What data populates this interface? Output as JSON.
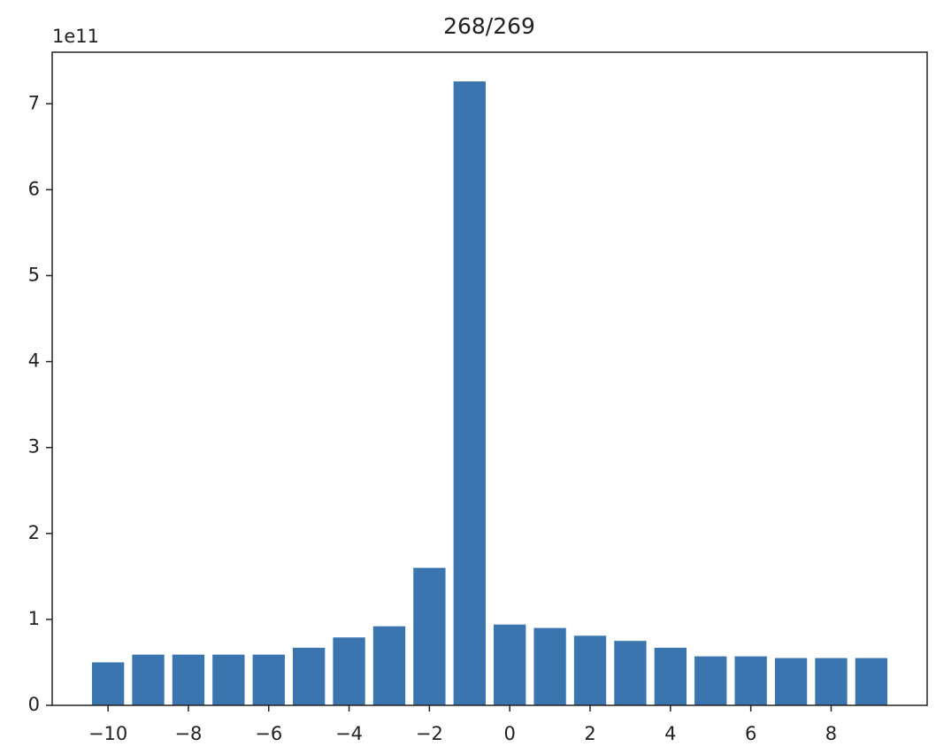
{
  "chart_data": {
    "type": "bar",
    "title": "268/269",
    "offset_label": "1e11",
    "x": [
      -10,
      -9,
      -8,
      -7,
      -6,
      -5,
      -4,
      -3,
      -2,
      -1,
      0,
      1,
      2,
      3,
      4,
      5,
      6,
      7,
      8,
      9
    ],
    "values": [
      0.5,
      0.59,
      0.59,
      0.59,
      0.59,
      0.67,
      0.79,
      0.92,
      1.6,
      7.26,
      0.94,
      0.9,
      0.81,
      0.75,
      0.67,
      0.57,
      0.57,
      0.55,
      0.55,
      0.55
    ],
    "bar_width": 0.8,
    "color": "#3a75af",
    "xlim": [
      -11.39,
      10.39
    ],
    "xticks": [
      {
        "value": -10,
        "label": "−10"
      },
      {
        "value": -8,
        "label": "−8"
      },
      {
        "value": -6,
        "label": "−6"
      },
      {
        "value": -4,
        "label": "−4"
      },
      {
        "value": -2,
        "label": "−2"
      },
      0,
      2,
      4,
      6,
      8
    ],
    "ylim": [
      0,
      7.6
    ],
    "yticks": [
      0,
      1,
      2,
      3,
      4,
      5,
      6,
      7
    ],
    "grid": false
  }
}
